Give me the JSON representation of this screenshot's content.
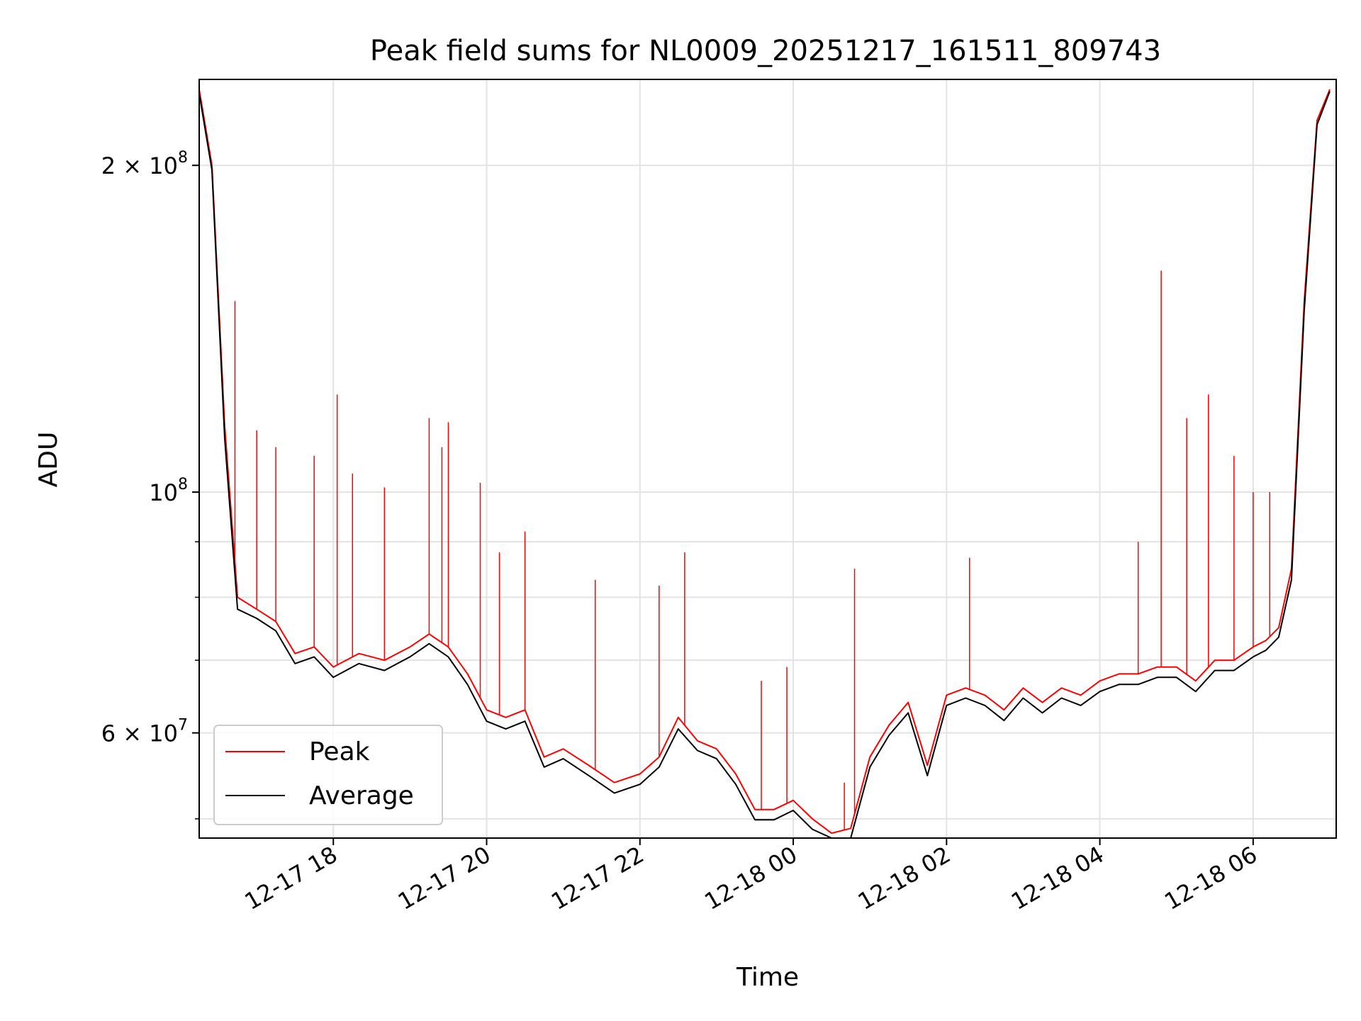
{
  "chart_data": {
    "type": "line",
    "title": "Peak field sums for NL0009_20251217_161511_809743",
    "xlabel": "Time",
    "ylabel": "ADU",
    "yscale": "log",
    "ylim": [
      48000000,
      240000000
    ],
    "xlim": [
      "12-17 16:15",
      "12-18 07:05"
    ],
    "x_ticks": [
      "12-17 18",
      "12-17 20",
      "12-17 22",
      "12-18 00",
      "12-18 02",
      "12-18 04",
      "12-18 06"
    ],
    "y_ticks": [
      {
        "value": 60000000,
        "label": "6 × 10",
        "exp": "7"
      },
      {
        "value": 100000000,
        "label": "10",
        "exp": "8"
      },
      {
        "value": 200000000,
        "label": "2 × 10",
        "exp": "8"
      }
    ],
    "y_minor_ticks": [
      50000000,
      70000000,
      80000000,
      90000000
    ],
    "grid": true,
    "legend_position": "lower-left",
    "x": [
      "12-17 16:15",
      "12-17 16:25",
      "12-17 16:35",
      "12-17 16:45",
      "12-17 17:00",
      "12-17 17:15",
      "12-17 17:30",
      "12-17 17:45",
      "12-17 18:00",
      "12-17 18:20",
      "12-17 18:40",
      "12-17 19:00",
      "12-17 19:15",
      "12-17 19:30",
      "12-17 19:45",
      "12-17 20:00",
      "12-17 20:15",
      "12-17 20:30",
      "12-17 20:45",
      "12-17 21:00",
      "12-17 21:20",
      "12-17 21:40",
      "12-17 22:00",
      "12-17 22:15",
      "12-17 22:30",
      "12-17 22:45",
      "12-17 23:00",
      "12-17 23:15",
      "12-17 23:30",
      "12-17 23:45",
      "12-18 00:00",
      "12-18 00:15",
      "12-18 00:30",
      "12-18 00:45",
      "12-18 01:00",
      "12-18 01:15",
      "12-18 01:30",
      "12-18 01:45",
      "12-18 02:00",
      "12-18 02:15",
      "12-18 02:30",
      "12-18 02:45",
      "12-18 03:00",
      "12-18 03:15",
      "12-18 03:30",
      "12-18 03:45",
      "12-18 04:00",
      "12-18 04:15",
      "12-18 04:30",
      "12-18 04:45",
      "12-18 05:00",
      "12-18 05:15",
      "12-18 05:30",
      "12-18 05:45",
      "12-18 06:00",
      "12-18 06:10",
      "12-18 06:20",
      "12-18 06:30",
      "12-18 06:40",
      "12-18 06:50",
      "12-18 07:00"
    ],
    "series": [
      {
        "name": "Peak",
        "color": "#ff0000",
        "values": [
          235000000,
          200000000,
          115000000,
          80000000,
          78000000,
          76000000,
          71000000,
          72000000,
          69000000,
          71000000,
          70000000,
          72000000,
          74000000,
          72000000,
          68000000,
          63000000,
          62000000,
          63000000,
          57000000,
          58000000,
          56000000,
          54000000,
          55000000,
          57000000,
          62000000,
          59000000,
          58000000,
          55000000,
          51000000,
          51000000,
          52000000,
          50000000,
          48500000,
          49000000,
          57000000,
          61000000,
          64000000,
          56000000,
          65000000,
          66000000,
          65000000,
          63000000,
          66000000,
          64000000,
          66000000,
          65000000,
          67000000,
          68000000,
          68000000,
          69000000,
          69000000,
          67000000,
          70000000,
          70000000,
          72000000,
          73000000,
          75000000,
          85000000,
          150000000,
          220000000,
          235000000
        ]
      },
      {
        "name": "Average",
        "color": "#000000",
        "values": [
          233000000,
          198000000,
          112000000,
          78000000,
          76500000,
          74500000,
          69500000,
          70500000,
          67500000,
          69500000,
          68500000,
          70500000,
          72500000,
          70500000,
          66500000,
          61500000,
          60500000,
          61500000,
          55800000,
          56800000,
          54800000,
          52800000,
          53800000,
          55800000,
          60500000,
          57800000,
          56800000,
          53800000,
          49900000,
          49900000,
          50900000,
          48900000,
          47700000,
          48000000,
          55800000,
          59700000,
          62600000,
          54800000,
          63600000,
          64600000,
          63600000,
          61600000,
          64600000,
          62600000,
          64600000,
          63600000,
          65500000,
          66500000,
          66500000,
          67500000,
          67500000,
          65500000,
          68500000,
          68500000,
          70500000,
          71500000,
          73500000,
          83000000,
          147000000,
          218000000,
          234000000
        ]
      }
    ],
    "spikes": [
      {
        "x": "12-17 16:43",
        "value": 150000000
      },
      {
        "x": "12-17 17:00",
        "value": 114000000
      },
      {
        "x": "12-17 17:15",
        "value": 110000000
      },
      {
        "x": "12-17 17:45",
        "value": 108000000
      },
      {
        "x": "12-17 18:03",
        "value": 123000000
      },
      {
        "x": "12-17 18:15",
        "value": 104000000
      },
      {
        "x": "12-17 18:40",
        "value": 101000000
      },
      {
        "x": "12-17 19:15",
        "value": 117000000
      },
      {
        "x": "12-17 19:25",
        "value": 110000000
      },
      {
        "x": "12-17 19:30",
        "value": 116000000
      },
      {
        "x": "12-17 19:55",
        "value": 102000000
      },
      {
        "x": "12-17 20:10",
        "value": 88000000
      },
      {
        "x": "12-17 20:30",
        "value": 92000000
      },
      {
        "x": "12-17 21:25",
        "value": 83000000
      },
      {
        "x": "12-17 22:15",
        "value": 82000000
      },
      {
        "x": "12-17 22:35",
        "value": 88000000
      },
      {
        "x": "12-17 23:35",
        "value": 67000000
      },
      {
        "x": "12-17 23:55",
        "value": 69000000
      },
      {
        "x": "12-18 00:40",
        "value": 54000000
      },
      {
        "x": "12-18 00:48",
        "value": 85000000
      },
      {
        "x": "12-18 02:18",
        "value": 87000000
      },
      {
        "x": "12-18 04:30",
        "value": 90000000
      },
      {
        "x": "12-18 04:48",
        "value": 160000000
      },
      {
        "x": "12-18 05:08",
        "value": 117000000
      },
      {
        "x": "12-18 05:25",
        "value": 123000000
      },
      {
        "x": "12-18 05:45",
        "value": 108000000
      },
      {
        "x": "12-18 06:00",
        "value": 100000000
      },
      {
        "x": "12-18 06:13",
        "value": 100000000
      }
    ]
  }
}
